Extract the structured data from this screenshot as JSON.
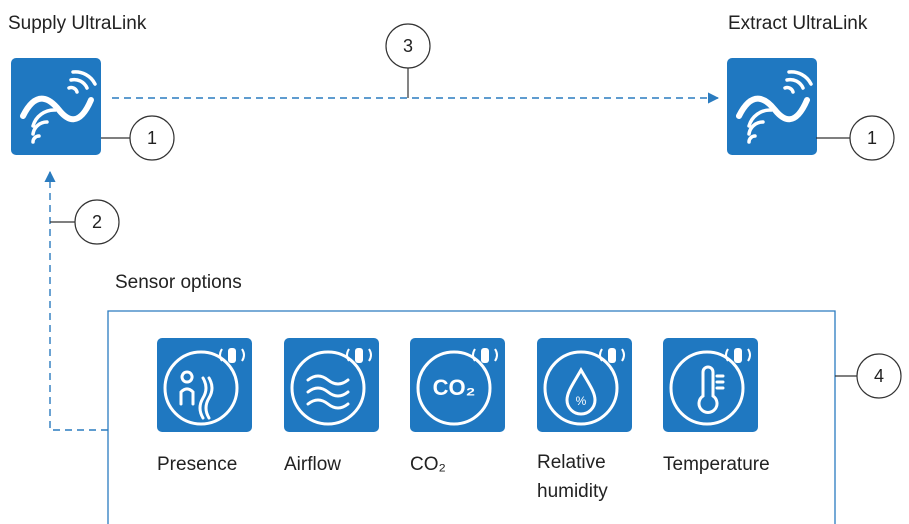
{
  "supply": {
    "label": "Supply UltraLink",
    "callout": "1"
  },
  "extract": {
    "label": "Extract UltraLink",
    "callout": "1"
  },
  "link_callouts": {
    "wireless_link": "3",
    "sensor_link": "2",
    "sensors": "4"
  },
  "sensor_group": {
    "title": "Sensor options",
    "sensors": [
      {
        "lines": [
          "Presence"
        ]
      },
      {
        "lines": [
          "Airflow"
        ]
      },
      {
        "lines": [
          "CO₂"
        ],
        "icon_text": "CO₂"
      },
      {
        "lines": [
          "Relative",
          "humidity"
        ]
      },
      {
        "lines": [
          "Temperature"
        ]
      }
    ]
  }
}
